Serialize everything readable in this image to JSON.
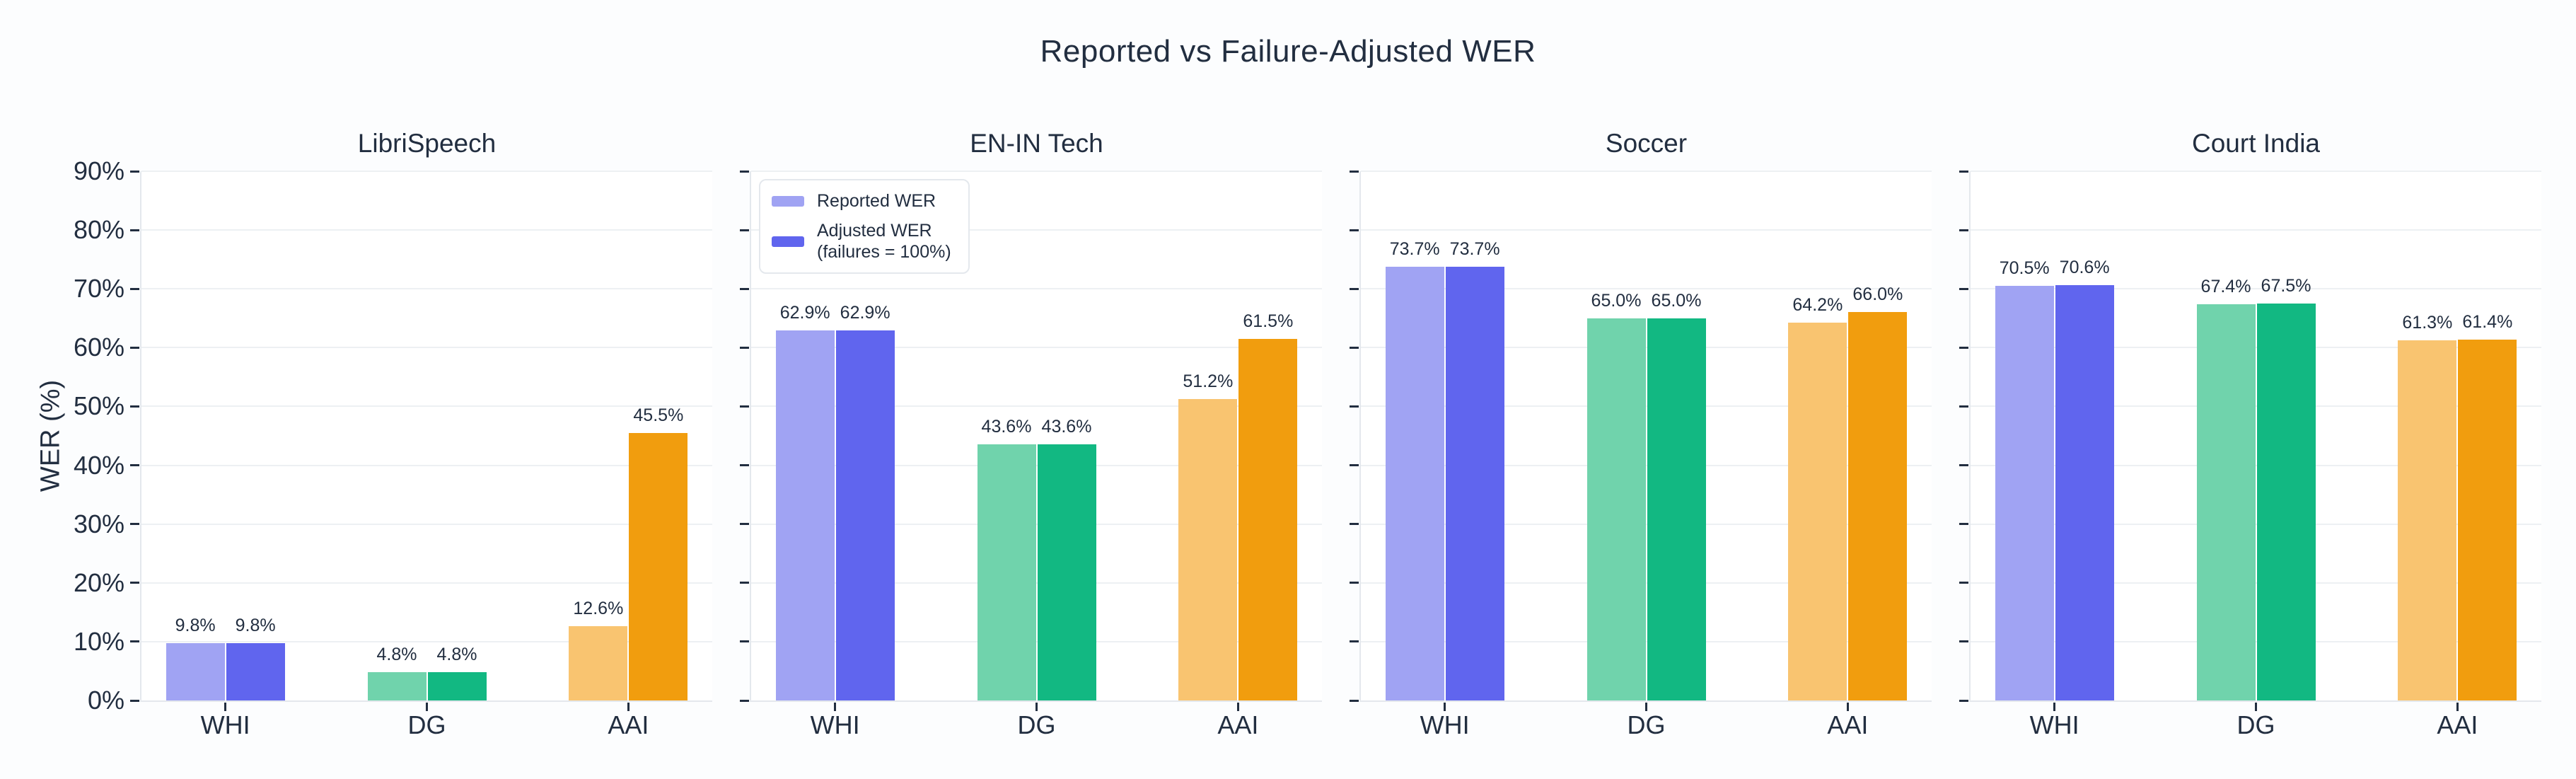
{
  "chart_data": {
    "type": "bar",
    "title": "Reported vs Failure-Adjusted WER",
    "ylabel": "WER (%)",
    "ylim": [
      0,
      90
    ],
    "grid": true,
    "legend_position": "upper-left of EN-IN Tech panel",
    "y_ticks": [
      "0%",
      "10%",
      "20%",
      "30%",
      "40%",
      "50%",
      "60%",
      "70%",
      "80%",
      "90%"
    ],
    "categories": [
      "WHI",
      "DG",
      "AAI"
    ],
    "series": [
      {
        "key": "reported",
        "label": "Reported WER"
      },
      {
        "key": "adjusted",
        "label": "Adjusted WER",
        "label_line2": "(failures = 100%)"
      }
    ],
    "legend_entries": [
      {
        "label": "Reported WER",
        "label_line2": "",
        "color": "#a0a3f3"
      },
      {
        "label": "Adjusted WER",
        "label_line2": "(failures = 100%)",
        "color": "#6065ee"
      }
    ],
    "category_colors": {
      "WHI": {
        "reported": "#a0a3f3",
        "adjusted": "#6065ee"
      },
      "DG": {
        "reported": "#70d3ac",
        "adjusted": "#12b882"
      },
      "AAI": {
        "reported": "#f9c470",
        "adjusted": "#f19d0e"
      }
    },
    "value_label_format": "{value:.1f}%",
    "subplots": [
      {
        "title": "LibriSpeech",
        "reported": [
          9.8,
          4.8,
          12.6
        ],
        "adjusted": [
          9.8,
          4.8,
          45.5
        ]
      },
      {
        "title": "EN-IN Tech",
        "reported": [
          62.9,
          43.6,
          51.2
        ],
        "adjusted": [
          62.9,
          43.6,
          61.5
        ]
      },
      {
        "title": "Soccer",
        "reported": [
          73.7,
          65.0,
          64.2
        ],
        "adjusted": [
          73.7,
          65.0,
          66.0
        ]
      },
      {
        "title": "Court India",
        "reported": [
          70.5,
          67.4,
          61.3
        ],
        "adjusted": [
          70.6,
          67.5,
          61.4
        ]
      }
    ],
    "colors": {
      "text": "#222e40",
      "grid": "#edf0f3",
      "spine": "#e4e8ed",
      "tick": "#222e40",
      "plot_background": "#ffffff",
      "figure_background": "#fcfdfe"
    }
  }
}
